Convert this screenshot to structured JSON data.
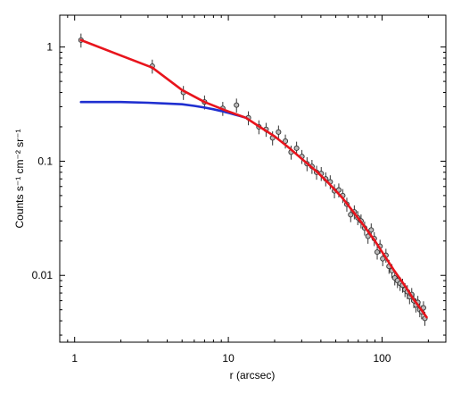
{
  "chart_data": {
    "type": "scatter",
    "title": "",
    "xlabel": "r (arcsec)",
    "ylabel": "Counts s⁻¹ cm⁻² sr⁻¹",
    "xscale": "log",
    "yscale": "log",
    "xlim": [
      0.8,
      260
    ],
    "ylim": [
      0.0026,
      1.9
    ],
    "grid": false,
    "legend": "none",
    "x_ticks": [
      {
        "value": 1,
        "label": "1"
      },
      {
        "value": 10,
        "label": "10"
      },
      {
        "value": 100,
        "label": "100"
      }
    ],
    "y_ticks": [
      {
        "value": 1,
        "label": "1"
      },
      {
        "value": 0.1,
        "label": "0.1"
      },
      {
        "value": 0.01,
        "label": "0.01"
      }
    ],
    "colors": {
      "data": "#333333",
      "model_total": "#e8141c",
      "model_core": "#1f2fd0"
    },
    "series": [
      {
        "kind": "points",
        "x": [
          1.1,
          3.2,
          5.1,
          7.0,
          9.2,
          11.3,
          13.5,
          15.8,
          17.6,
          19.4,
          21.2,
          23.5,
          25.6,
          27.8,
          30.1,
          32.5,
          35.0,
          37.5,
          40.2,
          43.0,
          46.0,
          49.0,
          52.3,
          55.5,
          59.0,
          62.5,
          66.0,
          69.5,
          73.0,
          77.0,
          81.0,
          85.0,
          89.0,
          93.0,
          97.0,
          101.0,
          106.0,
          111.0,
          116.0,
          121.0,
          126.0,
          131.0,
          136.0,
          141.0,
          146.0,
          151.0,
          156.0,
          161.0,
          166.0,
          171.0,
          176.0,
          181.0,
          186.0,
          190.0
        ],
        "y": [
          1.15,
          0.68,
          0.4,
          0.33,
          0.29,
          0.31,
          0.24,
          0.2,
          0.19,
          0.16,
          0.18,
          0.15,
          0.12,
          0.13,
          0.11,
          0.095,
          0.09,
          0.08,
          0.078,
          0.07,
          0.066,
          0.055,
          0.056,
          0.05,
          0.042,
          0.034,
          0.036,
          0.032,
          0.03,
          0.026,
          0.022,
          0.025,
          0.021,
          0.016,
          0.018,
          0.014,
          0.015,
          0.012,
          0.011,
          0.0095,
          0.009,
          0.0085,
          0.0082,
          0.0075,
          0.0072,
          0.0065,
          0.0068,
          0.006,
          0.0055,
          0.0058,
          0.005,
          0.0048,
          0.0052,
          0.0042
        ],
        "yerr_frac": 0.14
      },
      {
        "kind": "line",
        "x": [
          1.1,
          3.2,
          5.0,
          7.0,
          9.5,
          11.5,
          13.0,
          16.0,
          20.0,
          25.0,
          30.0,
          38.0,
          45.0,
          55.0,
          65.0,
          75.0,
          90.0,
          105.0,
          120.0,
          140.0,
          160.0,
          180.0,
          195.0
        ],
        "y": [
          1.15,
          0.66,
          0.42,
          0.33,
          0.28,
          0.255,
          0.24,
          0.2,
          0.165,
          0.13,
          0.105,
          0.08,
          0.064,
          0.048,
          0.036,
          0.028,
          0.02,
          0.0145,
          0.011,
          0.0082,
          0.0062,
          0.005,
          0.0043
        ]
      },
      {
        "kind": "line",
        "x": [
          1.1,
          2.0,
          3.0,
          4.0,
          5.0,
          6.0,
          7.0,
          8.0,
          9.0,
          10.0,
          11.0,
          12.0,
          13.0
        ],
        "y": [
          0.33,
          0.33,
          0.325,
          0.32,
          0.315,
          0.305,
          0.295,
          0.285,
          0.275,
          0.265,
          0.256,
          0.248,
          0.24
        ]
      }
    ]
  }
}
